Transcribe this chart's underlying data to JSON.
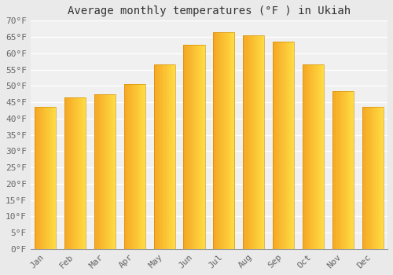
{
  "title": "Average monthly temperatures (°F ) in Ukiah",
  "months": [
    "Jan",
    "Feb",
    "Mar",
    "Apr",
    "May",
    "Jun",
    "Jul",
    "Aug",
    "Sep",
    "Oct",
    "Nov",
    "Dec"
  ],
  "values": [
    43.5,
    46.5,
    47.5,
    50.5,
    56.5,
    62.5,
    66.5,
    65.5,
    63.5,
    56.5,
    48.5,
    43.5
  ],
  "bar_color_left": "#F5A623",
  "bar_color_right": "#FFCC44",
  "ylim": [
    0,
    70
  ],
  "ytick_step": 5,
  "background_color": "#EAEAEA",
  "plot_bg_color": "#F0F0F0",
  "grid_color": "#FFFFFF",
  "title_fontsize": 10,
  "tick_fontsize": 8,
  "font_family": "monospace"
}
